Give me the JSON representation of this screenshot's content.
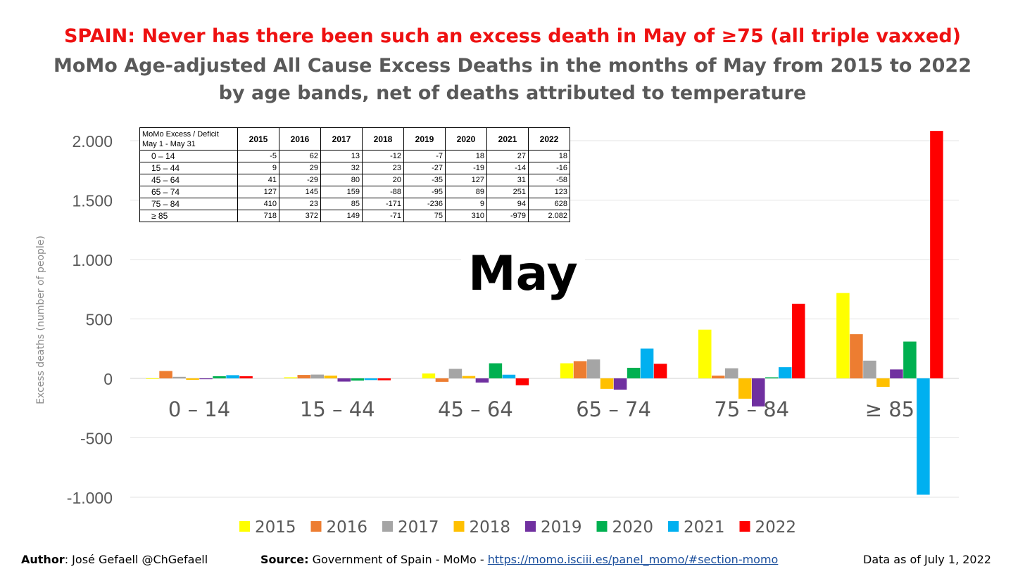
{
  "title": {
    "line1": "SPAIN: Never has there been such an excess death in May of ≥75 (all triple vaxxed)",
    "line2": "MoMo Age-adjusted All Cause Excess Deaths in the months of May from 2015 to 2022",
    "line3": "by age bands, net of deaths attributed to temperature"
  },
  "overlay_label": "May",
  "table": {
    "corner_line1": "MoMo Excess / Deficit",
    "corner_line2": "May 1 - May 31",
    "years": [
      "2015",
      "2016",
      "2017",
      "2018",
      "2019",
      "2020",
      "2021",
      "2022"
    ],
    "rows": [
      {
        "label": "0 – 14",
        "values": [
          "-5",
          "62",
          "13",
          "-12",
          "-7",
          "18",
          "27",
          "18"
        ]
      },
      {
        "label": "15 – 44",
        "values": [
          "9",
          "29",
          "32",
          "23",
          "-27",
          "-19",
          "-14",
          "-16"
        ]
      },
      {
        "label": "45 – 64",
        "values": [
          "41",
          "-29",
          "80",
          "20",
          "-35",
          "127",
          "31",
          "-58"
        ]
      },
      {
        "label": "65 – 74",
        "values": [
          "127",
          "145",
          "159",
          "-88",
          "-95",
          "89",
          "251",
          "123"
        ]
      },
      {
        "label": "75 – 84",
        "values": [
          "410",
          "23",
          "85",
          "-171",
          "-236",
          "9",
          "94",
          "628"
        ]
      },
      {
        "label": "≥ 85",
        "values": [
          "718",
          "372",
          "149",
          "-71",
          "75",
          "310",
          "-979",
          "2.082"
        ]
      }
    ]
  },
  "chart_data": {
    "type": "bar",
    "categories": [
      "0 – 14",
      "15 – 44",
      "45 – 64",
      "65 – 74",
      "75 – 84",
      "≥ 85"
    ],
    "series": [
      {
        "name": "2015",
        "color": "#ffff00",
        "values": [
          -5,
          9,
          41,
          127,
          410,
          718
        ]
      },
      {
        "name": "2016",
        "color": "#ed7d31",
        "values": [
          62,
          29,
          -29,
          145,
          23,
          372
        ]
      },
      {
        "name": "2017",
        "color": "#a5a5a5",
        "values": [
          13,
          32,
          80,
          159,
          85,
          149
        ]
      },
      {
        "name": "2018",
        "color": "#ffc000",
        "values": [
          -12,
          23,
          20,
          -88,
          -171,
          -71
        ]
      },
      {
        "name": "2019",
        "color": "#7030a0",
        "values": [
          -7,
          -27,
          -35,
          -95,
          -236,
          75
        ]
      },
      {
        "name": "2020",
        "color": "#00b050",
        "values": [
          18,
          -19,
          127,
          89,
          9,
          310
        ]
      },
      {
        "name": "2021",
        "color": "#00b0f0",
        "values": [
          27,
          -14,
          31,
          251,
          94,
          -979
        ]
      },
      {
        "name": "2022",
        "color": "#ff0000",
        "values": [
          18,
          -16,
          -58,
          123,
          628,
          2082
        ]
      }
    ],
    "ylabel": "Excess deaths (number of people)",
    "ylim": [
      -1000,
      2000
    ],
    "yticks": [
      2000,
      1500,
      1000,
      500,
      0,
      -500,
      -1000
    ],
    "ytick_labels": [
      "2.000",
      "1.500",
      "1.000",
      "500",
      "0",
      "-500",
      "-1.000"
    ],
    "grid": true,
    "legend": "bottom"
  },
  "footer": {
    "author_label": "Author",
    "author_text": ": José Gefaell @ChGefaell",
    "source_label": "Source:",
    "source_text": " Government of Spain - MoMo - ",
    "source_link": "https://momo.isciii.es/panel_momo/#section-momo",
    "date_text": "Data as of July 1, 2022"
  }
}
